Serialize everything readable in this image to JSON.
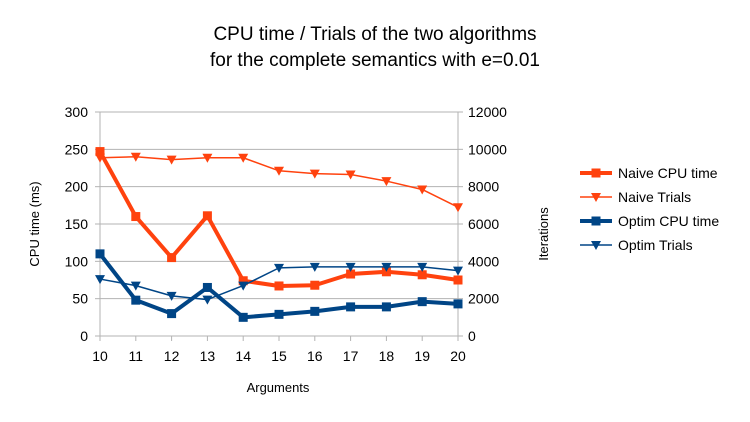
{
  "chart_data": {
    "type": "line",
    "title": "CPU time / Trials of the two algorithms",
    "subtitle": "for the complete semantics with e=0.01",
    "xlabel": "Arguments",
    "ylabel": "CPU time (ms)",
    "y2label": "Iterations",
    "x": [
      10,
      11,
      12,
      13,
      14,
      15,
      16,
      17,
      18,
      19,
      20
    ],
    "ylim": [
      0,
      300
    ],
    "y2lim": [
      0,
      12000
    ],
    "yticks": [
      0,
      50,
      100,
      150,
      200,
      250,
      300
    ],
    "y2ticks": [
      0,
      2000,
      4000,
      6000,
      8000,
      10000,
      12000
    ],
    "grid": true,
    "legend_position": "right",
    "series": [
      {
        "name": "Naive CPU time",
        "axis": "left",
        "color": "#ff420e",
        "marker": "square",
        "width": "thick",
        "values": [
          247,
          160,
          105,
          161,
          74,
          67,
          68,
          83,
          86,
          82,
          75
        ]
      },
      {
        "name": "Naive Trials",
        "axis": "right",
        "color": "#ff420e",
        "marker": "triangle-down",
        "width": "thin",
        "values": [
          9550,
          9600,
          9450,
          9550,
          9550,
          8850,
          8700,
          8650,
          8300,
          7850,
          6900
        ]
      },
      {
        "name": "Optim CPU time",
        "axis": "left",
        "color": "#004586",
        "marker": "square",
        "width": "thick",
        "values": [
          110,
          48,
          30,
          65,
          25,
          29,
          33,
          39,
          39,
          46,
          43
        ]
      },
      {
        "name": "Optim Trials",
        "axis": "right",
        "color": "#004586",
        "marker": "triangle-down",
        "width": "thin",
        "values": [
          3050,
          2700,
          2150,
          1950,
          2700,
          3650,
          3700,
          3700,
          3700,
          3700,
          3500
        ]
      }
    ]
  }
}
